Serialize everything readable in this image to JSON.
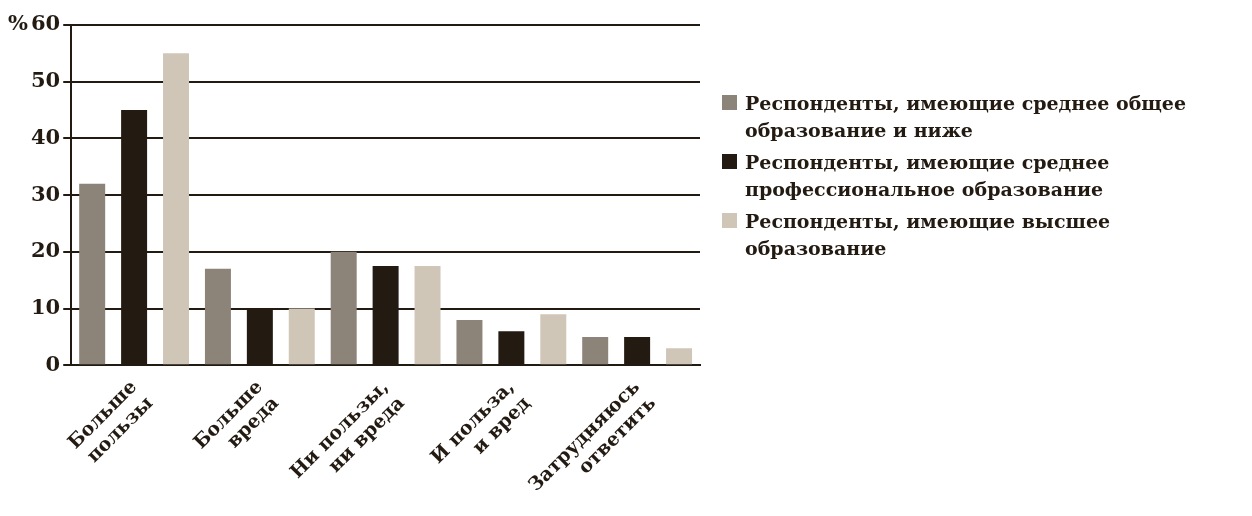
{
  "chart_data": {
    "type": "bar",
    "ylabel": "%",
    "categories": [
      "Больше пользы",
      "Больше вреда",
      "Ни пользы, ни вреда",
      "И польза, и вред",
      "Затрудняюсь ответить"
    ],
    "series": [
      {
        "name": "Респонденты, имеющие среднее общее образование и ниже",
        "color": "#8c8478",
        "values": [
          32,
          17,
          20,
          8,
          5
        ]
      },
      {
        "name": "Респонденты, имеющие среднее профессиональное образование",
        "color": "#231a12",
        "values": [
          45,
          10,
          17.5,
          6,
          5
        ]
      },
      {
        "name": "Респонденты, имеющие высшее образование",
        "color": "#cfc6b8",
        "values": [
          55,
          10,
          17.5,
          9,
          3
        ]
      }
    ],
    "ylim": [
      0,
      60
    ],
    "yticks": [
      0,
      10,
      20,
      30,
      40,
      50,
      60
    ],
    "grid": "y",
    "legend": "right"
  }
}
